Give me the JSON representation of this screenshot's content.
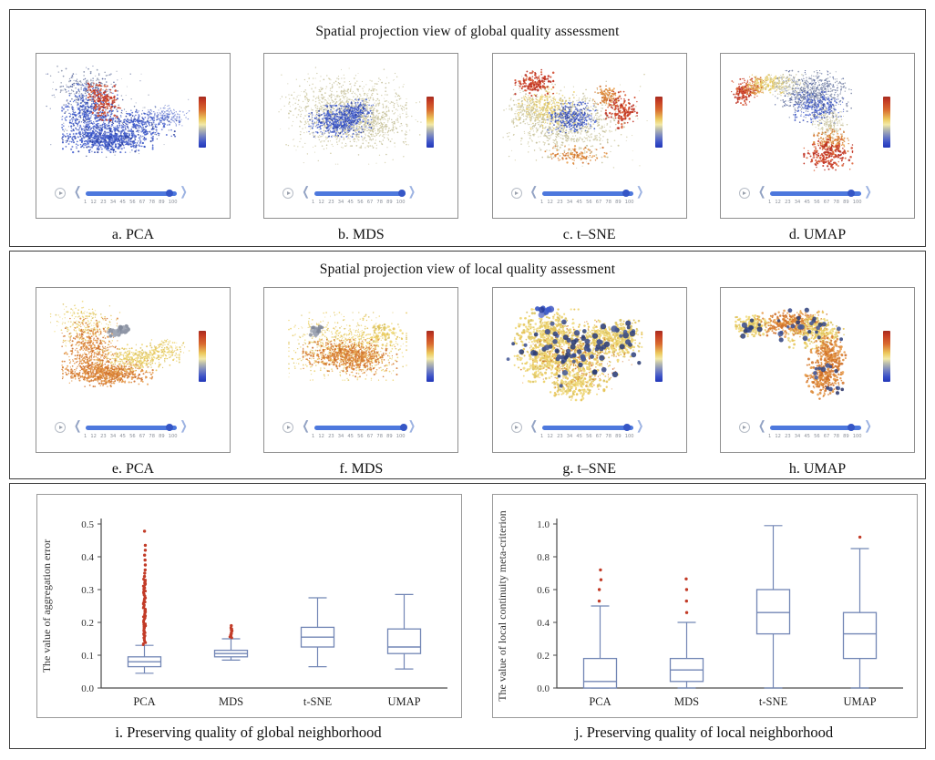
{
  "slider": {
    "ticks": [
      "1",
      "12",
      "23",
      "34",
      "45",
      "56",
      "67",
      "78",
      "89",
      "100"
    ]
  },
  "icons": {
    "play": "play-icon",
    "chevron_left": "❮",
    "chevron_right": "❯"
  },
  "colorbar": {
    "stops": [
      {
        "c": "#a32c20",
        "p": 0
      },
      {
        "c": "#c33a22",
        "p": 8
      },
      {
        "c": "#d96b30",
        "p": 26
      },
      {
        "c": "#ecc85c",
        "p": 44
      },
      {
        "c": "#f2e9a8",
        "p": 55
      },
      {
        "c": "#b9bcae",
        "p": 64
      },
      {
        "c": "#7280c2",
        "p": 78
      },
      {
        "c": "#3a50c8",
        "p": 90
      },
      {
        "c": "#2338b8",
        "p": 100
      }
    ]
  },
  "palettes": {
    "blues": [
      "#2f4ec2",
      "#3d5bd0",
      "#5068cf",
      "#2a3f9e",
      "#6b7dd6",
      "#445cc4"
    ],
    "paleblue": [
      "#7c8ed8",
      "#98a6e0",
      "#6e82d2"
    ],
    "grayblue": [
      "#8d96ae",
      "#7d88a6",
      "#9aa3b8",
      "#5f6f9e",
      "#4a5a96"
    ],
    "reds": [
      "#c03020",
      "#d2492c",
      "#b52a1b",
      "#dc5f33"
    ],
    "orange": [
      "#dc8a3a",
      "#d4762c",
      "#e89c4a",
      "#cd6d28"
    ],
    "yellow": [
      "#e6c455",
      "#eed46e",
      "#d9c261",
      "#f0dc82"
    ],
    "khaki": [
      "#ccc69c",
      "#d6d1ae",
      "#bfbb92",
      "#c8c4a4"
    ],
    "gray": [
      "#8f96a6",
      "#7f8799",
      "#a0a7b5"
    ],
    "darkblue": [
      "#3c4f8e",
      "#33457f",
      "#475a97",
      "#2c3d75"
    ]
  },
  "chart_data": [
    {
      "type": "scatter",
      "title": "Spatial projection view of global quality assessment",
      "panels": [
        {
          "caption": "a. PCA",
          "thumb": 0.93,
          "clusters": [
            {
              "palette": "grayblue",
              "n": 150,
              "cx": 0.45,
              "cy": 0.45,
              "sx": 0.22,
              "sy": 0.16,
              "r": 0.6
            },
            {
              "palette": "grayblue",
              "n": 240,
              "cx": 0.27,
              "cy": 0.22,
              "sx": 0.1,
              "sy": 0.09,
              "r": 0.7
            },
            {
              "palette": "blues",
              "n": 550,
              "cx": 0.3,
              "cy": 0.45,
              "sx": 0.08,
              "sy": 0.12,
              "r": 0.8
            },
            {
              "palette": "blues",
              "n": 650,
              "cx": 0.42,
              "cy": 0.66,
              "sx": 0.13,
              "sy": 0.05,
              "r": 0.9
            },
            {
              "palette": "blues",
              "n": 350,
              "cx": 0.62,
              "cy": 0.52,
              "sx": 0.12,
              "sy": 0.05,
              "r": 0.8
            },
            {
              "palette": "paleblue",
              "n": 140,
              "cx": 0.8,
              "cy": 0.45,
              "sx": 0.07,
              "sy": 0.04,
              "r": 0.7
            },
            {
              "palette": "reds",
              "n": 130,
              "cx": 0.4,
              "cy": 0.33,
              "sx": 0.045,
              "sy": 0.07,
              "r": 1.0
            },
            {
              "palette": "reds",
              "n": 40,
              "cx": 0.33,
              "cy": 0.22,
              "sx": 0.03,
              "sy": 0.04,
              "r": 0.9
            }
          ]
        },
        {
          "caption": "b. MDS",
          "thumb": 0.97,
          "clusters": [
            {
              "palette": "khaki",
              "n": 300,
              "cx": 0.5,
              "cy": 0.42,
              "sx": 0.26,
              "sy": 0.2,
              "r": 0.6
            },
            {
              "palette": "khaki",
              "n": 1000,
              "cx": 0.5,
              "cy": 0.42,
              "sx": 0.17,
              "sy": 0.13,
              "r": 0.7
            },
            {
              "palette": "khaki",
              "n": 300,
              "cx": 0.62,
              "cy": 0.55,
              "sx": 0.12,
              "sy": 0.08,
              "r": 0.7
            },
            {
              "palette": "blues",
              "n": 520,
              "cx": 0.45,
              "cy": 0.5,
              "sx": 0.09,
              "sy": 0.06,
              "r": 0.8
            },
            {
              "palette": "blues",
              "n": 150,
              "cx": 0.56,
              "cy": 0.4,
              "sx": 0.05,
              "sy": 0.04,
              "r": 0.8
            }
          ]
        },
        {
          "caption": "c. t–SNE",
          "thumb": 0.93,
          "clusters": [
            {
              "palette": "khaki",
              "n": 200,
              "cx": 0.45,
              "cy": 0.5,
              "sx": 0.24,
              "sy": 0.18,
              "r": 0.6
            },
            {
              "palette": "khaki",
              "n": 700,
              "cx": 0.45,
              "cy": 0.52,
              "sx": 0.16,
              "sy": 0.13,
              "r": 0.8
            },
            {
              "palette": "yellow",
              "n": 250,
              "cx": 0.3,
              "cy": 0.38,
              "sx": 0.08,
              "sy": 0.08,
              "r": 0.8
            },
            {
              "palette": "blues",
              "n": 320,
              "cx": 0.47,
              "cy": 0.47,
              "sx": 0.07,
              "sy": 0.06,
              "r": 0.8
            },
            {
              "palette": "reds",
              "n": 170,
              "cx": 0.22,
              "cy": 0.16,
              "sx": 0.055,
              "sy": 0.05,
              "r": 1.0
            },
            {
              "palette": "reds",
              "n": 160,
              "cx": 0.8,
              "cy": 0.4,
              "sx": 0.045,
              "sy": 0.07,
              "r": 1.0
            },
            {
              "palette": "orange",
              "n": 90,
              "cx": 0.7,
              "cy": 0.28,
              "sx": 0.04,
              "sy": 0.04,
              "r": 0.9
            },
            {
              "palette": "orange",
              "n": 110,
              "cx": 0.5,
              "cy": 0.8,
              "sx": 0.09,
              "sy": 0.035,
              "r": 0.9
            },
            {
              "palette": "khaki",
              "n": 160,
              "cx": 0.17,
              "cy": 0.42,
              "sx": 0.05,
              "sy": 0.09,
              "r": 0.7
            }
          ]
        },
        {
          "caption": "d. UMAP",
          "thumb": 0.9,
          "clusters": [
            {
              "palette": "reds",
              "n": 160,
              "cx": 0.1,
              "cy": 0.24,
              "sx": 0.04,
              "sy": 0.05,
              "r": 0.9
            },
            {
              "palette": "orange",
              "n": 90,
              "cx": 0.17,
              "cy": 0.2,
              "sx": 0.035,
              "sy": 0.04,
              "r": 0.8
            },
            {
              "palette": "yellow",
              "n": 160,
              "cx": 0.26,
              "cy": 0.17,
              "sx": 0.06,
              "sy": 0.035,
              "r": 0.8
            },
            {
              "palette": "khaki",
              "n": 160,
              "cx": 0.37,
              "cy": 0.18,
              "sx": 0.06,
              "sy": 0.04,
              "r": 0.7
            },
            {
              "palette": "grayblue",
              "n": 700,
              "cx": 0.56,
              "cy": 0.26,
              "sx": 0.11,
              "sy": 0.09,
              "r": 0.7
            },
            {
              "palette": "blues",
              "n": 250,
              "cx": 0.6,
              "cy": 0.38,
              "sx": 0.07,
              "sy": 0.06,
              "r": 0.8
            },
            {
              "palette": "khaki",
              "n": 200,
              "cx": 0.67,
              "cy": 0.52,
              "sx": 0.05,
              "sy": 0.07,
              "r": 0.7
            },
            {
              "palette": "orange",
              "n": 140,
              "cx": 0.68,
              "cy": 0.68,
              "sx": 0.05,
              "sy": 0.05,
              "r": 0.9
            },
            {
              "palette": "reds",
              "n": 220,
              "cx": 0.66,
              "cy": 0.8,
              "sx": 0.07,
              "sy": 0.06,
              "r": 1.0
            }
          ]
        }
      ]
    },
    {
      "type": "scatter",
      "title": "Spatial projection view of local quality assessment",
      "panels": [
        {
          "caption": "e. PCA",
          "thumb": 0.93,
          "clusters": [
            {
              "palette": "yellow",
              "n": 240,
              "cx": 0.27,
              "cy": 0.22,
              "sx": 0.1,
              "sy": 0.09,
              "r": 0.7
            },
            {
              "palette": "orange",
              "n": 500,
              "cx": 0.3,
              "cy": 0.45,
              "sx": 0.08,
              "sy": 0.12,
              "r": 0.8
            },
            {
              "palette": "orange",
              "n": 600,
              "cx": 0.42,
              "cy": 0.66,
              "sx": 0.13,
              "sy": 0.05,
              "r": 0.9
            },
            {
              "palette": "yellow",
              "n": 350,
              "cx": 0.62,
              "cy": 0.52,
              "sx": 0.12,
              "sy": 0.05,
              "r": 0.8
            },
            {
              "palette": "yellow",
              "n": 140,
              "cx": 0.8,
              "cy": 0.45,
              "sx": 0.07,
              "sy": 0.04,
              "r": 0.7
            },
            {
              "palette": "gray",
              "n": 25,
              "cx": 0.52,
              "cy": 0.27,
              "sx": 0.02,
              "sy": 0.02,
              "r": 2.2
            },
            {
              "palette": "gray",
              "n": 12,
              "cx": 0.46,
              "cy": 0.3,
              "sx": 0.015,
              "sy": 0.015,
              "r": 2.0
            }
          ]
        },
        {
          "caption": "f. MDS",
          "thumb": 0.99,
          "clusters": [
            {
              "palette": "yellow",
              "n": 800,
              "cx": 0.5,
              "cy": 0.42,
              "sx": 0.17,
              "sy": 0.13,
              "r": 0.7
            },
            {
              "palette": "orange",
              "n": 500,
              "cx": 0.48,
              "cy": 0.5,
              "sx": 0.12,
              "sy": 0.06,
              "r": 0.9
            },
            {
              "palette": "orange",
              "n": 200,
              "cx": 0.62,
              "cy": 0.55,
              "sx": 0.09,
              "sy": 0.06,
              "r": 0.8
            },
            {
              "palette": "yellow",
              "n": 60,
              "cx": 0.75,
              "cy": 0.3,
              "sx": 0.05,
              "sy": 0.05,
              "r": 1.2
            },
            {
              "palette": "gray",
              "n": 20,
              "cx": 0.3,
              "cy": 0.28,
              "sx": 0.02,
              "sy": 0.02,
              "r": 2.2
            }
          ]
        },
        {
          "caption": "g. t–SNE",
          "thumb": 0.94,
          "clusters": [
            {
              "palette": "yellow",
              "n": 400,
              "cx": 0.32,
              "cy": 0.3,
              "sx": 0.1,
              "sy": 0.09,
              "r": 1.2
            },
            {
              "palette": "yellow",
              "n": 400,
              "cx": 0.5,
              "cy": 0.55,
              "sx": 0.12,
              "sy": 0.1,
              "r": 1.2
            },
            {
              "palette": "yellow",
              "n": 250,
              "cx": 0.68,
              "cy": 0.35,
              "sx": 0.08,
              "sy": 0.07,
              "r": 1.2
            },
            {
              "palette": "yellow",
              "n": 200,
              "cx": 0.25,
              "cy": 0.55,
              "sx": 0.07,
              "sy": 0.08,
              "r": 1.2
            },
            {
              "palette": "yellow",
              "n": 180,
              "cx": 0.5,
              "cy": 0.78,
              "sx": 0.08,
              "sy": 0.05,
              "r": 1.2
            },
            {
              "palette": "yellow",
              "n": 200,
              "cx": 0.82,
              "cy": 0.35,
              "sx": 0.05,
              "sy": 0.07,
              "r": 1.2
            },
            {
              "palette": "orange",
              "n": 300,
              "cx": 0.5,
              "cy": 0.5,
              "sx": 0.16,
              "sy": 0.13,
              "r": 0.7
            },
            {
              "palette": "darkblue",
              "n": 70,
              "cx": 0.48,
              "cy": 0.45,
              "sx": 0.19,
              "sy": 0.16,
              "r": 2.5
            },
            {
              "palette": "darkblue",
              "n": 12,
              "cx": 0.83,
              "cy": 0.33,
              "sx": 0.04,
              "sy": 0.05,
              "r": 2.8
            },
            {
              "palette": "blues",
              "n": 8,
              "cx": 0.3,
              "cy": 0.1,
              "sx": 0.03,
              "sy": 0.02,
              "r": 3.0
            }
          ]
        },
        {
          "caption": "h. UMAP",
          "thumb": 0.9,
          "clusters": [
            {
              "palette": "yellow",
              "n": 200,
              "cx": 0.16,
              "cy": 0.24,
              "sx": 0.05,
              "sy": 0.04,
              "r": 1.1
            },
            {
              "palette": "darkblue",
              "n": 10,
              "cx": 0.14,
              "cy": 0.26,
              "sx": 0.03,
              "sy": 0.03,
              "r": 2.4
            },
            {
              "palette": "orange",
              "n": 350,
              "cx": 0.42,
              "cy": 0.22,
              "sx": 0.1,
              "sy": 0.05,
              "r": 1.1
            },
            {
              "palette": "yellow",
              "n": 250,
              "cx": 0.58,
              "cy": 0.28,
              "sx": 0.08,
              "sy": 0.07,
              "r": 1.1
            },
            {
              "palette": "orange",
              "n": 250,
              "cx": 0.66,
              "cy": 0.48,
              "sx": 0.05,
              "sy": 0.08,
              "r": 1.1
            },
            {
              "palette": "orange",
              "n": 220,
              "cx": 0.64,
              "cy": 0.7,
              "sx": 0.06,
              "sy": 0.08,
              "r": 1.2
            },
            {
              "palette": "darkblue",
              "n": 26,
              "cx": 0.5,
              "cy": 0.26,
              "sx": 0.13,
              "sy": 0.07,
              "r": 2.3
            },
            {
              "palette": "darkblue",
              "n": 8,
              "cx": 0.62,
              "cy": 0.6,
              "sx": 0.05,
              "sy": 0.05,
              "r": 2.4
            },
            {
              "palette": "darkblue",
              "n": 6,
              "cx": 0.68,
              "cy": 0.8,
              "sx": 0.04,
              "sy": 0.03,
              "r": 2.4
            }
          ]
        }
      ]
    },
    {
      "type": "box",
      "caption": "i. Preserving quality of global neighborhood",
      "ylabel": "The value of aggregation error",
      "ylim": [
        0,
        0.5
      ],
      "yticks": [
        "0.0",
        "0.1",
        "0.2",
        "0.3",
        "0.4",
        "0.5"
      ],
      "categories": [
        "PCA",
        "MDS",
        "t-SNE",
        "UMAP"
      ],
      "box_color": "#7286b5",
      "outlier_color": "#c23b27",
      "boxes": [
        {
          "low": 0.045,
          "q1": 0.065,
          "median": 0.08,
          "q3": 0.095,
          "high": 0.13,
          "outlier_band": [
            0.132,
            0.335
          ],
          "outliers": [
            0.34,
            0.35,
            0.36,
            0.375,
            0.39,
            0.405,
            0.42,
            0.435,
            0.478
          ]
        },
        {
          "low": 0.085,
          "q1": 0.095,
          "median": 0.105,
          "q3": 0.115,
          "high": 0.15,
          "outlier_band": [
            0.153,
            0.185
          ],
          "outliers": [
            0.19
          ]
        },
        {
          "low": 0.065,
          "q1": 0.125,
          "median": 0.155,
          "q3": 0.185,
          "high": 0.275,
          "outliers": []
        },
        {
          "low": 0.058,
          "q1": 0.105,
          "median": 0.125,
          "q3": 0.18,
          "high": 0.285,
          "outliers": []
        }
      ]
    },
    {
      "type": "box",
      "caption": "j. Preserving quality of local neighborhood",
      "ylabel": "The value of local continuity meta-criterion",
      "ylim": [
        0,
        1.0
      ],
      "yticks": [
        "0.0",
        "0.2",
        "0.4",
        "0.6",
        "0.8",
        "1.0"
      ],
      "categories": [
        "PCA",
        "MDS",
        "t-SNE",
        "UMAP"
      ],
      "box_color": "#7286b5",
      "outlier_color": "#c23b27",
      "boxes": [
        {
          "low": 0.0,
          "q1": 0.0,
          "median": 0.04,
          "q3": 0.18,
          "high": 0.5,
          "outliers": [
            0.53,
            0.6,
            0.66,
            0.72
          ]
        },
        {
          "low": 0.0,
          "q1": 0.04,
          "median": 0.11,
          "q3": 0.18,
          "high": 0.4,
          "outliers": [
            0.46,
            0.53,
            0.6,
            0.665
          ]
        },
        {
          "low": 0.0,
          "q1": 0.33,
          "median": 0.46,
          "q3": 0.6,
          "high": 0.99,
          "outliers": []
        },
        {
          "low": 0.0,
          "q1": 0.18,
          "median": 0.33,
          "q3": 0.46,
          "high": 0.85,
          "outliers": [
            0.92
          ]
        }
      ]
    }
  ]
}
